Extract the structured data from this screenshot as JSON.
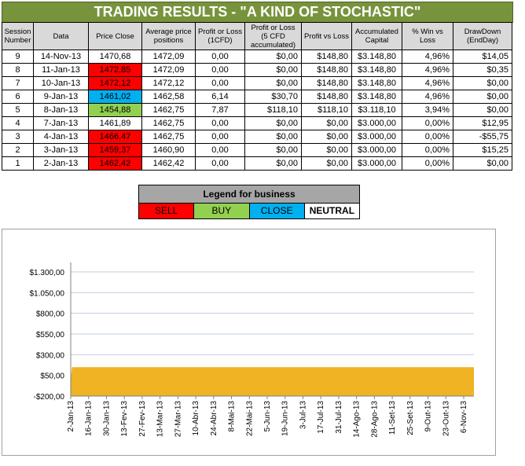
{
  "title": "TRADING RESULTS - \"A KIND OF STOCHASTIC\"",
  "table": {
    "headers": [
      "Session Number",
      "Data",
      "Price Close",
      "Average price positions",
      "Profit or Loss (1CFD)",
      "Profit or Loss (5 CFD accumulated)",
      "Profit vs Loss",
      "Accumulated Capital",
      "% Win vs Loss",
      "DrawDown (EndDay)"
    ],
    "rows": [
      {
        "session": "9",
        "date": "14-Nov-13",
        "price": "1470,68",
        "signal": "neutral",
        "avg": "1472,09",
        "pl1": "0,00",
        "pl5": "$0,00",
        "pvl": "$148,80",
        "capital": "$3.148,80",
        "win": "4,96%",
        "dd": "$14,05"
      },
      {
        "session": "8",
        "date": "11-Jan-13",
        "price": "1472,85",
        "signal": "sell",
        "avg": "1472,09",
        "pl1": "0,00",
        "pl5": "$0,00",
        "pvl": "$148,80",
        "capital": "$3.148,80",
        "win": "4,96%",
        "dd": "$0,35"
      },
      {
        "session": "7",
        "date": "10-Jan-13",
        "price": "1472,12",
        "signal": "sell",
        "avg": "1472,12",
        "pl1": "0,00",
        "pl5": "$0,00",
        "pvl": "$148,80",
        "capital": "$3.148,80",
        "win": "4,96%",
        "dd": "$0,00"
      },
      {
        "session": "6",
        "date": "9-Jan-13",
        "price": "1461,02",
        "signal": "close",
        "avg": "1462,58",
        "pl1": "6,14",
        "pl5": "$30,70",
        "pvl": "$148,80",
        "capital": "$3.148,80",
        "win": "4,96%",
        "dd": "$0,00"
      },
      {
        "session": "5",
        "date": "8-Jan-13",
        "price": "1454,88",
        "signal": "buy",
        "avg": "1462,75",
        "pl1": "7,87",
        "pl5": "$118,10",
        "pvl": "$118,10",
        "capital": "$3.118,10",
        "win": "3,94%",
        "dd": "$0,00"
      },
      {
        "session": "4",
        "date": "7-Jan-13",
        "price": "1461,89",
        "signal": "neutral",
        "avg": "1462,75",
        "pl1": "0,00",
        "pl5": "$0,00",
        "pvl": "$0,00",
        "capital": "$3.000,00",
        "win": "0,00%",
        "dd": "$12,95"
      },
      {
        "session": "3",
        "date": "4-Jan-13",
        "price": "1466,47",
        "signal": "sell",
        "avg": "1462,75",
        "pl1": "0,00",
        "pl5": "$0,00",
        "pvl": "$0,00",
        "capital": "$3.000,00",
        "win": "0,00%",
        "dd": "-$55,75"
      },
      {
        "session": "2",
        "date": "3-Jan-13",
        "price": "1459,37",
        "signal": "sell",
        "avg": "1460,90",
        "pl1": "0,00",
        "pl5": "$0,00",
        "pvl": "$0,00",
        "capital": "$3.000,00",
        "win": "0,00%",
        "dd": "$15,25"
      },
      {
        "session": "1",
        "date": "2-Jan-13",
        "price": "1462,42",
        "signal": "sell",
        "avg": "1462,42",
        "pl1": "0,00",
        "pl5": "$0,00",
        "pvl": "$0,00",
        "capital": "$3.000,00",
        "win": "0,00%",
        "dd": "$0,00"
      }
    ]
  },
  "legend": {
    "title": "Legend for business",
    "items": [
      "SELL",
      "BUY",
      "CLOSE",
      "NEUTRAL"
    ]
  },
  "colors": {
    "title_bg": "#77933c",
    "sell": "#ff0000",
    "buy": "#92d050",
    "close": "#00b0f0",
    "neutral": "#ffffff",
    "area": "#f0b323",
    "grid": "#bfcde0"
  },
  "chart_data": {
    "type": "area",
    "title": "",
    "xlabel": "",
    "ylabel": "",
    "ylim": [
      -200,
      1300
    ],
    "yticks": [
      -200,
      50,
      300,
      550,
      800,
      1050,
      1300
    ],
    "ytick_labels": [
      "-$200,00",
      "$50,00",
      "$300,00",
      "$550,00",
      "$800,00",
      "$1.050,00",
      "$1.300,00"
    ],
    "xlim": [
      "2013-01-02",
      "2013-11-14"
    ],
    "xtick_labels": [
      "2-Jan-13",
      "16-Jan-13",
      "30-Jan-13",
      "13-Fev-13",
      "27-Fev-13",
      "13-Mar-13",
      "27-Mar-13",
      "10-Abr-13",
      "24-Abr-13",
      "8-Mai-13",
      "22-Mai-13",
      "5-Jun-13",
      "19-Jun-13",
      "3-Jul-13",
      "17-Jul-13",
      "31-Jul-13",
      "14-Ago-13",
      "28-Ago-13",
      "11-Set-13",
      "25-Set-13",
      "9-Out-13",
      "23-Out-13",
      "6-Nov-13"
    ],
    "grid": "horizontal",
    "series": [
      {
        "x": [
          "2013-01-02",
          "2013-01-03",
          "2013-11-14"
        ],
        "values": [
          0,
          148.8,
          148.8
        ]
      }
    ]
  }
}
